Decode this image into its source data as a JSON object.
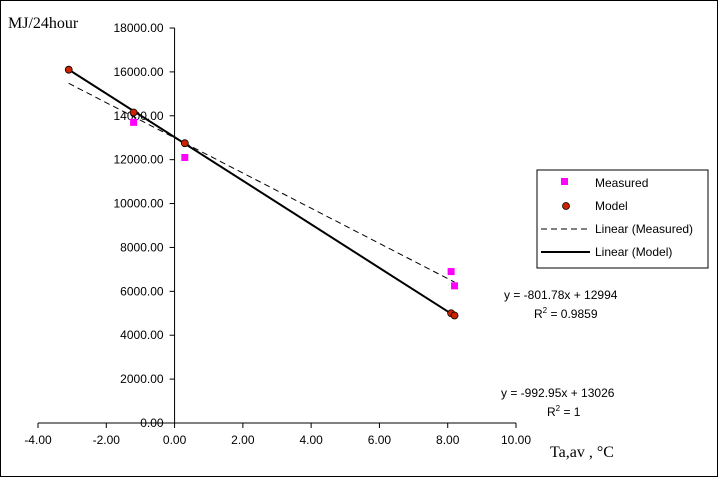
{
  "chart_data": {
    "type": "scatter",
    "ylabel": "MJ/24hour",
    "xlabel": "Ta,av  , °C",
    "xlim": [
      -4,
      10
    ],
    "ylim": [
      0,
      18000
    ],
    "xticks": [
      "-4.00",
      "-2.00",
      "0.00",
      "2.00",
      "4.00",
      "6.00",
      "8.00",
      "10.00"
    ],
    "yticks": [
      "0.00",
      "2000.00",
      "4000.00",
      "6000.00",
      "8000.00",
      "10000.00",
      "12000.00",
      "14000.00",
      "16000.00",
      "18000.00"
    ],
    "grid": false,
    "legend_position": "right",
    "series": [
      {
        "name": "Measured",
        "kind": "points",
        "marker": "square",
        "color": "#ff00ff",
        "x": [
          -1.2,
          0.3,
          8.1,
          8.2
        ],
        "y": [
          13700,
          12100,
          6900,
          6250
        ]
      },
      {
        "name": "Model",
        "kind": "points",
        "marker": "circle",
        "color": "#cc2200",
        "x": [
          -3.1,
          -1.2,
          0.3,
          8.1,
          8.2
        ],
        "y": [
          16100,
          14150,
          12750,
          5000,
          4900
        ]
      },
      {
        "name": "Linear (Measured)",
        "kind": "trend",
        "dash": "dashed",
        "color": "#000000",
        "slope": -801.78,
        "intercept": 12994,
        "x_range": [
          -3.1,
          8.2
        ]
      },
      {
        "name": "Linear (Model)",
        "kind": "trend",
        "dash": "solid",
        "color": "#000000",
        "slope": -992.95,
        "intercept": 13026,
        "x_range": [
          -3.1,
          8.2
        ]
      }
    ],
    "annotations": {
      "measured_eq": "y = -801.78x + 12994",
      "measured_r2_prefix": "R",
      "measured_r2_value": " = 0.9859",
      "model_eq": "y = -992.95x + 13026",
      "model_r2_prefix": "R",
      "model_r2_value": " = 1",
      "r2_superscript": "2"
    }
  }
}
